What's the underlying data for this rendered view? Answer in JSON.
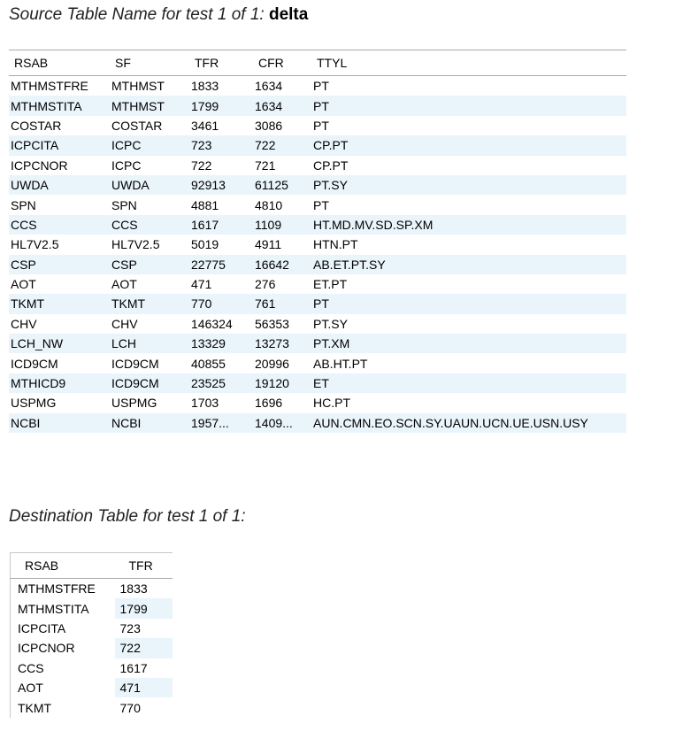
{
  "source": {
    "caption": "Source Table Name for test 1 of 1:",
    "table_name": "delta",
    "columns": [
      "RSAB",
      "SF",
      "TFR",
      "CFR",
      "TTYL"
    ],
    "rows": [
      [
        "MTHMSTFRE",
        "MTHMST",
        "1833",
        "1634",
        "PT"
      ],
      [
        "MTHMSTITA",
        "MTHMST",
        "1799",
        "1634",
        "PT"
      ],
      [
        "COSTAR",
        "COSTAR",
        "3461",
        "3086",
        "PT"
      ],
      [
        "ICPCITA",
        "ICPC",
        "723",
        "722",
        "CP.PT"
      ],
      [
        "ICPCNOR",
        "ICPC",
        "722",
        "721",
        "CP.PT"
      ],
      [
        "UWDA",
        "UWDA",
        "92913",
        "61125",
        "PT.SY"
      ],
      [
        "SPN",
        "SPN",
        "4881",
        "4810",
        "PT"
      ],
      [
        "CCS",
        "CCS",
        "1617",
        "1109",
        "HT.MD.MV.SD.SP.XM"
      ],
      [
        "HL7V2.5",
        "HL7V2.5",
        "5019",
        "4911",
        "HTN.PT"
      ],
      [
        "CSP",
        "CSP",
        "22775",
        "16642",
        "AB.ET.PT.SY"
      ],
      [
        "AOT",
        "AOT",
        "471",
        "276",
        "ET.PT"
      ],
      [
        "TKMT",
        "TKMT",
        "770",
        "761",
        "PT"
      ],
      [
        "CHV",
        "CHV",
        "146324",
        "56353",
        "PT.SY"
      ],
      [
        "LCH_NW",
        "LCH",
        "13329",
        "13273",
        "PT.XM"
      ],
      [
        "ICD9CM",
        "ICD9CM",
        "40855",
        "20996",
        "AB.HT.PT"
      ],
      [
        "MTHICD9",
        "ICD9CM",
        "23525",
        "19120",
        "ET"
      ],
      [
        "USPMG",
        "USPMG",
        "1703",
        "1696",
        "HC.PT"
      ],
      [
        "NCBI",
        "NCBI",
        "1957...",
        "1409...",
        "AUN.CMN.EO.SCN.SY.UAUN.UCN.UE.USN.USY"
      ]
    ]
  },
  "destination": {
    "caption": "Destination Table for test 1 of 1:",
    "columns": [
      "RSAB",
      "TFR"
    ],
    "rows": [
      [
        "MTHMSTFRE",
        "1833"
      ],
      [
        "MTHMSTITA",
        "1799"
      ],
      [
        "ICPCITA",
        "723"
      ],
      [
        "ICPCNOR",
        "722"
      ],
      [
        "CCS",
        "1617"
      ],
      [
        "AOT",
        "471"
      ],
      [
        "TKMT",
        "770"
      ]
    ]
  }
}
